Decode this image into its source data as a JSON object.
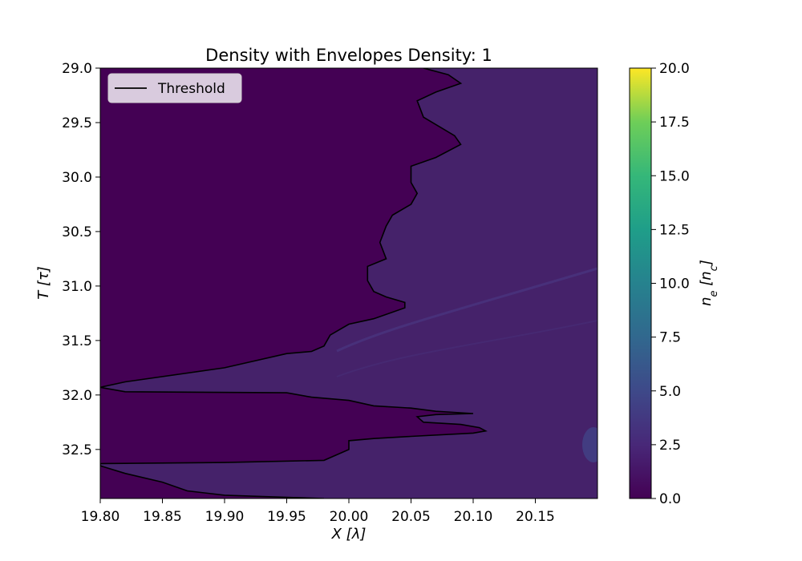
{
  "chart_data": {
    "type": "heatmap",
    "title": "Density with Envelopes Density: 1",
    "xlabel": "X [λ]",
    "ylabel": "T [τ]",
    "xlim": [
      19.8,
      20.2
    ],
    "ylim": [
      32.95,
      29.0
    ],
    "x_ticks": [
      19.8,
      19.85,
      19.9,
      19.95,
      20.0,
      20.05,
      20.1,
      20.15
    ],
    "x_tick_labels": [
      "19.80",
      "19.85",
      "19.90",
      "19.95",
      "20.00",
      "20.05",
      "20.10",
      "20.15"
    ],
    "y_ticks": [
      29.0,
      29.5,
      30.0,
      30.5,
      31.0,
      31.5,
      32.0,
      32.5
    ],
    "y_tick_labels": [
      "29.0",
      "29.5",
      "30.0",
      "30.5",
      "31.0",
      "31.5",
      "32.0",
      "32.5"
    ],
    "colorbar": {
      "label": "n_e [n_c]",
      "range": [
        0.0,
        20.0
      ],
      "ticks": [
        0.0,
        2.5,
        5.0,
        7.5,
        10.0,
        12.5,
        15.0,
        17.5,
        20.0
      ],
      "tick_labels": [
        "0.0",
        "2.5",
        "5.0",
        "7.5",
        "10.0",
        "12.5",
        "15.0",
        "17.5",
        "20.0"
      ],
      "colormap": "viridis"
    },
    "legend": {
      "entries": [
        "Threshold"
      ],
      "placement": "top-left"
    },
    "colors": {
      "background_low": "#440154",
      "background_mid": "#46236a",
      "threshold_line": "#000000"
    },
    "series": [
      {
        "name": "Threshold",
        "points": [
          [
            20.06,
            29.0
          ],
          [
            20.08,
            29.06
          ],
          [
            20.09,
            29.14
          ],
          [
            20.07,
            29.22
          ],
          [
            20.055,
            29.3
          ],
          [
            20.06,
            29.45
          ],
          [
            20.085,
            29.62
          ],
          [
            20.09,
            29.7
          ],
          [
            20.07,
            29.82
          ],
          [
            20.05,
            29.9
          ],
          [
            20.05,
            30.05
          ],
          [
            20.055,
            30.15
          ],
          [
            20.05,
            30.25
          ],
          [
            20.035,
            30.35
          ],
          [
            20.03,
            30.45
          ],
          [
            20.025,
            30.6
          ],
          [
            20.03,
            30.75
          ],
          [
            20.015,
            30.82
          ],
          [
            20.015,
            30.95
          ],
          [
            20.02,
            31.05
          ],
          [
            20.03,
            31.1
          ],
          [
            20.045,
            31.15
          ],
          [
            20.045,
            31.2
          ],
          [
            20.02,
            31.3
          ],
          [
            20.0,
            31.35
          ],
          [
            19.985,
            31.45
          ],
          [
            19.98,
            31.55
          ],
          [
            19.97,
            31.6
          ],
          [
            19.95,
            31.62
          ],
          [
            19.9,
            31.75
          ],
          [
            19.82,
            31.88
          ],
          [
            19.8,
            31.93
          ],
          [
            19.82,
            31.97
          ],
          [
            19.95,
            31.98
          ],
          [
            19.97,
            32.02
          ],
          [
            20.0,
            32.05
          ],
          [
            20.02,
            32.1
          ],
          [
            20.05,
            32.12
          ],
          [
            20.07,
            32.15
          ],
          [
            20.1,
            32.17
          ],
          [
            20.07,
            32.18
          ],
          [
            20.055,
            32.2
          ],
          [
            20.06,
            32.25
          ],
          [
            20.09,
            32.27
          ],
          [
            20.105,
            32.3
          ],
          [
            20.11,
            32.33
          ],
          [
            20.1,
            32.35
          ],
          [
            20.05,
            32.38
          ],
          [
            20.02,
            32.4
          ],
          [
            20.0,
            32.42
          ],
          [
            20.0,
            32.5
          ],
          [
            19.99,
            32.55
          ],
          [
            19.98,
            32.6
          ],
          [
            19.9,
            32.62
          ],
          [
            19.8,
            32.63
          ],
          [
            19.8,
            32.65
          ],
          [
            19.82,
            32.72
          ],
          [
            19.85,
            32.8
          ],
          [
            19.87,
            32.88
          ],
          [
            19.9,
            32.92
          ],
          [
            19.95,
            32.94
          ],
          [
            19.98,
            32.95
          ]
        ]
      }
    ]
  }
}
